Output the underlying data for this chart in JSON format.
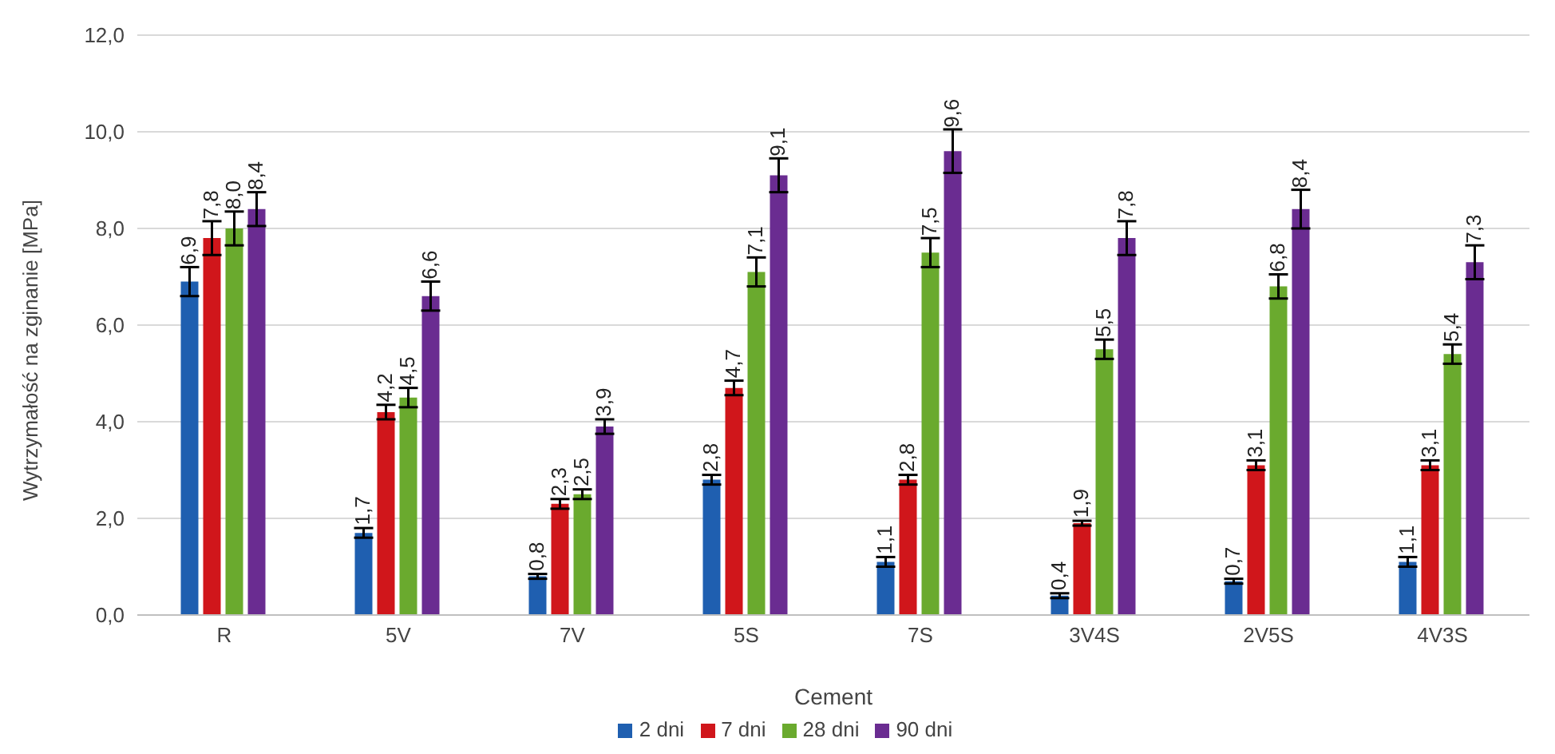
{
  "chart_data": {
    "type": "bar",
    "xlabel": "Cement",
    "ylabel": "Wytrzymałość na zginanie [MPa]",
    "categories": [
      "R",
      "5V",
      "7V",
      "5S",
      "7S",
      "3V4S",
      "2V5S",
      "4V3S"
    ],
    "series": [
      {
        "name": "2 dni",
        "color": "#1f5fb0",
        "values": [
          6.9,
          1.7,
          0.8,
          2.8,
          1.1,
          0.4,
          0.7,
          1.1
        ],
        "errors": [
          0.3,
          0.1,
          0.05,
          0.1,
          0.1,
          0.05,
          0.05,
          0.1
        ],
        "value_labels": [
          "6,9",
          "1,7",
          "0,8",
          "2,8",
          "1,1",
          "0,4",
          "0,7",
          "1,1"
        ]
      },
      {
        "name": "7 dni",
        "color": "#d0161b",
        "values": [
          7.8,
          4.2,
          2.3,
          4.7,
          2.8,
          1.9,
          3.1,
          3.1
        ],
        "errors": [
          0.35,
          0.15,
          0.1,
          0.15,
          0.1,
          0.05,
          0.1,
          0.1
        ],
        "value_labels": [
          "7,8",
          "4,2",
          "2,3",
          "4,7",
          "2,8",
          "1,9",
          "3,1",
          "3,1"
        ]
      },
      {
        "name": "28 dni",
        "color": "#6aaa2e",
        "values": [
          8.0,
          4.5,
          2.5,
          7.1,
          7.5,
          5.5,
          6.8,
          5.4
        ],
        "errors": [
          0.35,
          0.2,
          0.1,
          0.3,
          0.3,
          0.2,
          0.25,
          0.2
        ],
        "value_labels": [
          "8,0",
          "4,5",
          "2,5",
          "7,1",
          "7,5",
          "5,5",
          "6,8",
          "5,4"
        ]
      },
      {
        "name": "90 dni",
        "color": "#6a2c91",
        "values": [
          8.4,
          6.6,
          3.9,
          9.1,
          9.6,
          7.8,
          8.4,
          7.3
        ],
        "errors": [
          0.35,
          0.3,
          0.15,
          0.35,
          0.45,
          0.35,
          0.4,
          0.35
        ],
        "value_labels": [
          "8,4",
          "6,6",
          "3,9",
          "9,1",
          "9,6",
          "7,8",
          "8,4",
          "7,3"
        ]
      }
    ],
    "ylim": [
      0,
      12
    ],
    "yticks": [
      {
        "value": 0,
        "label": "0,0"
      },
      {
        "value": 2,
        "label": "2,0"
      },
      {
        "value": 4,
        "label": "4,0"
      },
      {
        "value": 6,
        "label": "6,0"
      },
      {
        "value": 8,
        "label": "8,0"
      },
      {
        "value": 10,
        "label": "10,0"
      },
      {
        "value": 12,
        "label": "12,0"
      }
    ],
    "grid": "y",
    "legend": "bottom"
  }
}
